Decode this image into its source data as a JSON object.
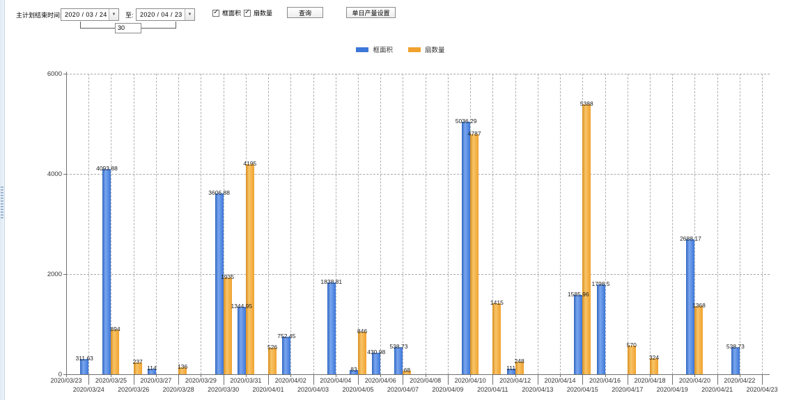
{
  "toolbar": {
    "label_plan_end": "主计划结束时间:",
    "date_from": "2020 / 03 / 24",
    "label_to": "至:",
    "date_to": "2020 / 04 / 23",
    "interval_days": "30",
    "checkbox_area": "框面积",
    "checkbox_area_checked": true,
    "checkbox_fans": "扇数量",
    "checkbox_fans_checked": true,
    "query_button": "查询",
    "daily_output_button": "单日产量设置"
  },
  "chart_data": {
    "type": "bar",
    "title": "",
    "xlabel": "",
    "ylabel": "",
    "ylim": [
      0,
      6000
    ],
    "yticks": [
      0,
      2000,
      4000,
      6000
    ],
    "grid": true,
    "legend_position": "top-center",
    "categories": [
      "2020/03/23",
      "2020/03/24",
      "2020/03/25",
      "2020/03/26",
      "2020/03/27",
      "2020/03/28",
      "2020/03/29",
      "2020/03/30",
      "2020/03/31",
      "2020/04/01",
      "2020/04/02",
      "2020/04/03",
      "2020/04/04",
      "2020/04/05",
      "2020/04/06",
      "2020/04/07",
      "2020/04/08",
      "2020/04/09",
      "2020/04/10",
      "2020/04/11",
      "2020/04/12",
      "2020/04/13",
      "2020/04/14",
      "2020/04/15",
      "2020/04/16",
      "2020/04/17",
      "2020/04/18",
      "2020/04/19",
      "2020/04/20",
      "2020/04/21",
      "2020/04/22",
      "2020/04/23"
    ],
    "series": [
      {
        "name": "框面积",
        "key": "frame-area",
        "color": "#3d77d9",
        "color_light": "#7aa6ef",
        "color_edge": "#2f66c0",
        "values": [
          0,
          311.63,
          4093.88,
          0,
          114,
          0,
          0,
          3606.88,
          1344.95,
          0,
          752.45,
          0,
          1838.81,
          83,
          430.98,
          538.73,
          0,
          0,
          5036.29,
          0,
          111,
          0,
          0,
          1585.96,
          1798.5,
          0,
          0,
          0,
          2688.17,
          0,
          538.73,
          0
        ]
      },
      {
        "name": "扇数量",
        "key": "fan-count",
        "color": "#f0a22e",
        "color_light": "#f8c468",
        "color_edge": "#d98f1f",
        "values": [
          0,
          0,
          894,
          237,
          0,
          136,
          0,
          1935,
          4195,
          526,
          0,
          0,
          0,
          846,
          0,
          68,
          0,
          0,
          4787,
          1415,
          248,
          0,
          0,
          5388,
          0,
          570,
          324,
          0,
          1368,
          0,
          0,
          0
        ]
      }
    ]
  }
}
